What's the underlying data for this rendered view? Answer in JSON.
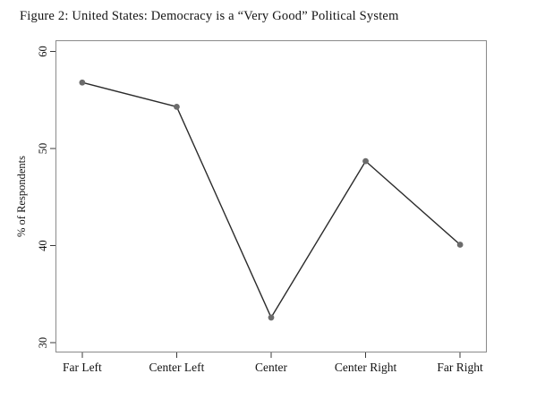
{
  "chart_data": {
    "type": "line",
    "title": "Figure 2: United States: Democracy is a “Very Good” Political System",
    "categories": [
      "Far Left",
      "Center Left",
      "Center",
      "Center Right",
      "Far Right"
    ],
    "values": [
      56.8,
      54.3,
      32.6,
      48.7,
      40.1
    ],
    "xlabel": "",
    "ylabel": "% of Respondents",
    "ylim": [
      29.0,
      61.15
    ],
    "yticks": [
      30,
      40,
      50,
      60
    ],
    "grid": false,
    "legend": false,
    "marker": "circle",
    "colors": {
      "line": "#2b2b2b",
      "marker": "#6b6b6b",
      "frame": "#8a8a8a",
      "tick": "#3a3a3a",
      "text": "#141414",
      "background": "#ffffff"
    }
  }
}
